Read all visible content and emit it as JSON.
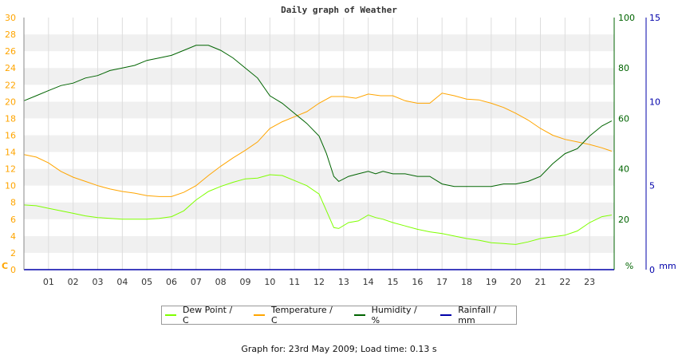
{
  "footer": "Graph for: 23rd May 2009; Load time: 0.13 s",
  "chart_data": {
    "type": "line",
    "title": "Daily graph of Weather",
    "left_axis": {
      "unit_label": "C",
      "ylim": [
        0,
        30
      ],
      "ticks": [
        0,
        2,
        4,
        6,
        8,
        10,
        12,
        14,
        16,
        18,
        20,
        22,
        24,
        26,
        28,
        30
      ],
      "color": "#ffa500"
    },
    "right_axis_1": {
      "unit_label": "%",
      "ylim": [
        0,
        100
      ],
      "ticks": [
        0,
        20,
        40,
        60,
        80,
        100
      ],
      "color": "#006400"
    },
    "right_axis_2": {
      "unit_label": "mm",
      "ylim": [
        0,
        15
      ],
      "ticks": [
        0,
        5,
        10,
        15
      ],
      "color": "#0000aa"
    },
    "x_ticks": [
      "01",
      "02",
      "03",
      "04",
      "05",
      "06",
      "07",
      "08",
      "09",
      "10",
      "11",
      "12",
      "13",
      "14",
      "15",
      "16",
      "17",
      "18",
      "19",
      "20",
      "21",
      "22",
      "23"
    ],
    "xlim": [
      0,
      24
    ],
    "grid": "horizontal bands",
    "legend_position": "bottom",
    "series": [
      {
        "name": "Dew Point / C",
        "axis": "left",
        "color": "#7fff00",
        "x": [
          0,
          0.5,
          1,
          1.5,
          2,
          2.5,
          3,
          3.5,
          4,
          4.5,
          5,
          5.5,
          6,
          6.5,
          7,
          7.5,
          8,
          8.5,
          9,
          9.5,
          10,
          10.5,
          11,
          11.5,
          12,
          12.3,
          12.6,
          12.8,
          13.2,
          13.6,
          14,
          14.3,
          14.6,
          15,
          15.5,
          16,
          16.5,
          17,
          17.5,
          18,
          18.5,
          19,
          19.5,
          20,
          20.5,
          21,
          21.5,
          22,
          22.5,
          23,
          23.5,
          23.9
        ],
        "values": [
          7.7,
          7.6,
          7.3,
          7.0,
          6.7,
          6.4,
          6.2,
          6.1,
          6.0,
          6.0,
          6.0,
          6.1,
          6.3,
          7.0,
          8.3,
          9.3,
          9.9,
          10.4,
          10.8,
          10.9,
          11.3,
          11.2,
          10.6,
          10.0,
          9.0,
          7.0,
          5.0,
          4.9,
          5.6,
          5.8,
          6.5,
          6.2,
          6.0,
          5.6,
          5.2,
          4.8,
          4.5,
          4.3,
          4.0,
          3.7,
          3.5,
          3.2,
          3.1,
          3.0,
          3.3,
          3.7,
          3.9,
          4.1,
          4.6,
          5.6,
          6.3,
          6.5
        ]
      },
      {
        "name": "Temperature / C",
        "axis": "left",
        "color": "#ffa500",
        "x": [
          0,
          0.5,
          1,
          1.5,
          2,
          2.5,
          3,
          3.5,
          4,
          4.5,
          5,
          5.5,
          6,
          6.5,
          7,
          7.5,
          8,
          8.5,
          9,
          9.5,
          10,
          10.5,
          11,
          11.5,
          12,
          12.5,
          13,
          13.5,
          14,
          14.5,
          15,
          15.5,
          16,
          16.5,
          17,
          17.5,
          18,
          18.5,
          19,
          19.5,
          20,
          20.5,
          21,
          21.5,
          22,
          22.5,
          23,
          23.5,
          23.9
        ],
        "values": [
          13.7,
          13.4,
          12.7,
          11.7,
          11.0,
          10.5,
          10.0,
          9.6,
          9.3,
          9.1,
          8.8,
          8.7,
          8.7,
          9.2,
          10.0,
          11.2,
          12.3,
          13.3,
          14.2,
          15.2,
          16.8,
          17.6,
          18.2,
          18.8,
          19.8,
          20.6,
          20.6,
          20.4,
          20.9,
          20.7,
          20.7,
          20.1,
          19.8,
          19.8,
          21.0,
          20.7,
          20.3,
          20.2,
          19.8,
          19.3,
          18.6,
          17.8,
          16.8,
          16.0,
          15.5,
          15.2,
          14.9,
          14.5,
          14.1
        ]
      },
      {
        "name": "Humidity / %",
        "axis": "right_1",
        "color": "#006400",
        "x": [
          0,
          0.5,
          1,
          1.5,
          2,
          2.5,
          3,
          3.5,
          4,
          4.5,
          5,
          5.5,
          6,
          6.5,
          7,
          7.5,
          8,
          8.5,
          9,
          9.5,
          10,
          10.5,
          11,
          11.5,
          12,
          12.3,
          12.6,
          12.8,
          13.2,
          13.6,
          14,
          14.3,
          14.6,
          15,
          15.5,
          16,
          16.5,
          17,
          17.5,
          18,
          18.5,
          19,
          19.5,
          20,
          20.5,
          21,
          21.5,
          22,
          22.5,
          23,
          23.5,
          23.9
        ],
        "values": [
          67,
          69,
          71,
          73,
          74,
          76,
          77,
          79,
          80,
          81,
          83,
          84,
          85,
          87,
          89,
          89,
          87,
          84,
          80,
          76,
          69,
          66,
          62,
          58,
          53,
          46,
          37,
          35,
          37,
          38,
          39,
          38,
          39,
          38,
          38,
          37,
          37,
          34,
          33,
          33,
          33,
          33,
          34,
          34,
          35,
          37,
          42,
          46,
          48,
          53,
          57,
          59
        ]
      },
      {
        "name": "Rainfall / mm",
        "axis": "right_2",
        "color": "#0000aa",
        "x": [
          0,
          24
        ],
        "values": [
          0,
          0
        ]
      }
    ]
  }
}
